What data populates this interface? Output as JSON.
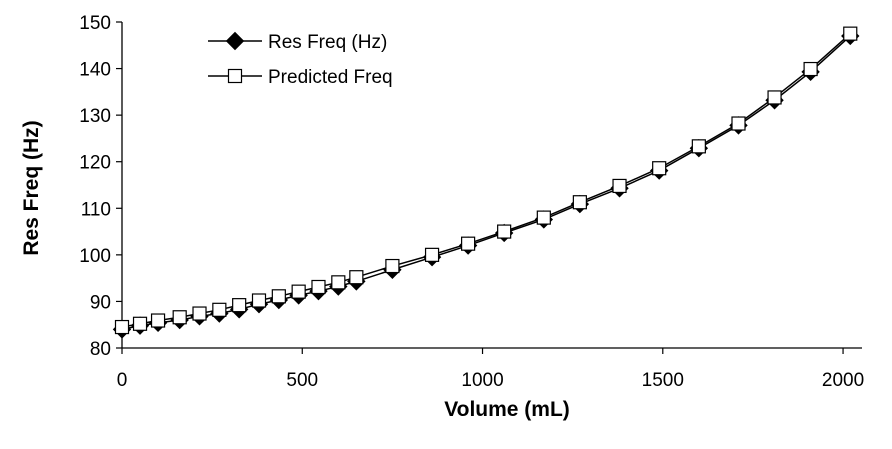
{
  "chart_data": {
    "type": "line",
    "title": "",
    "xlabel": "Volume (mL)",
    "ylabel": "Res Freq (Hz)",
    "xlim": [
      0,
      2000
    ],
    "ylim": [
      80,
      150
    ],
    "xticks": [
      "0",
      "500",
      "1000",
      "1500",
      "2000"
    ],
    "xtick_values": [
      0,
      500,
      1000,
      1500,
      2000
    ],
    "yticks": [
      "80",
      "90",
      "100",
      "110",
      "120",
      "130",
      "140",
      "150"
    ],
    "ytick_values": [
      80,
      90,
      100,
      110,
      120,
      130,
      140,
      150
    ],
    "grid": false,
    "legend_position": "top-left",
    "series": [
      {
        "name": "Res Freq (Hz)",
        "marker": "diamond",
        "color": "#000000",
        "x": [
          0,
          50,
          100,
          160,
          215,
          270,
          325,
          380,
          435,
          490,
          545,
          600,
          650,
          750,
          860,
          960,
          1060,
          1170,
          1270,
          1380,
          1490,
          1600,
          1710,
          1810,
          1910,
          2020
        ],
        "y": [
          84.0,
          84.8,
          85.4,
          86.0,
          86.8,
          87.4,
          88.3,
          89.4,
          90.3,
          91.3,
          92.2,
          93.2,
          94.3,
          96.8,
          99.5,
          102.0,
          104.7,
          107.6,
          110.9,
          114.3,
          118.1,
          122.9,
          127.8,
          133.2,
          139.3,
          147.0
        ]
      },
      {
        "name": "Predicted Freq",
        "marker": "square",
        "color": "#000000",
        "x": [
          0,
          50,
          100,
          160,
          215,
          270,
          325,
          380,
          435,
          490,
          545,
          600,
          650,
          750,
          860,
          960,
          1060,
          1170,
          1270,
          1380,
          1490,
          1600,
          1710,
          1810,
          1910,
          2020
        ],
        "y": [
          84.5,
          85.2,
          85.9,
          86.6,
          87.4,
          88.2,
          89.2,
          90.2,
          91.1,
          92.1,
          93.1,
          94.1,
          95.2,
          97.6,
          100.0,
          102.4,
          105.0,
          108.0,
          111.3,
          114.8,
          118.6,
          123.3,
          128.2,
          133.8,
          139.9,
          147.5
        ]
      }
    ]
  }
}
